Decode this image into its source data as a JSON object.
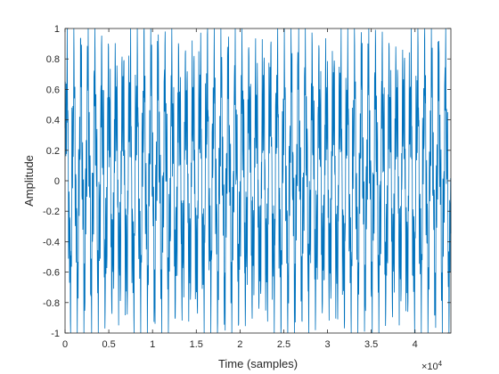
{
  "chart_data": {
    "type": "line",
    "title": "",
    "xlabel": "Time (samples)",
    "ylabel": "Amplitude",
    "xlim": [
      0,
      44100
    ],
    "ylim": [
      -1,
      1
    ],
    "x_ticks": [
      0,
      5000,
      10000,
      15000,
      20000,
      25000,
      30000,
      35000,
      40000
    ],
    "x_tick_labels": [
      "0",
      "0.5",
      "1",
      "1.5",
      "2",
      "2.5",
      "3",
      "3.5",
      "4"
    ],
    "x_exponent_base": "×10",
    "x_exponent_power": "4",
    "y_ticks": [
      -1,
      -0.8,
      -0.6,
      -0.4,
      -0.2,
      0,
      0.2,
      0.4,
      0.6,
      0.8,
      1
    ],
    "y_tick_labels": [
      "-1",
      "-0.8",
      "-0.6",
      "-0.4",
      "-0.2",
      "0",
      "0.2",
      "0.4",
      "0.6",
      "0.8",
      "1"
    ],
    "grid": false,
    "series": [
      {
        "color": "#0072BD",
        "signal_description": "dense oscillating waveform spanning the full amplitude range, roughly periodic envelope",
        "envelope": {
          "peak_min": -1,
          "peak_max": 1,
          "cycle_count_approx": 55
        }
      }
    ]
  }
}
